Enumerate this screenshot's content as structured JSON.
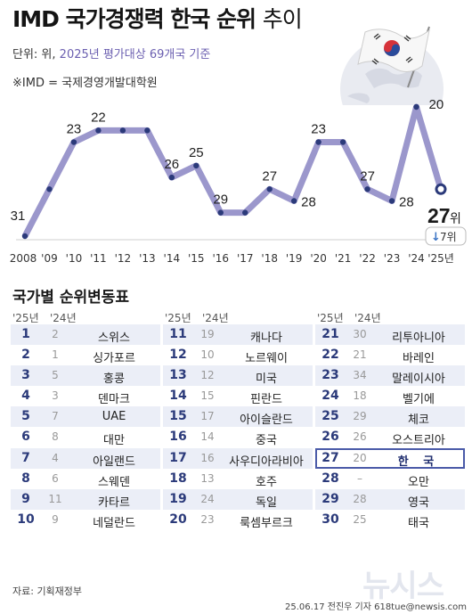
{
  "title": {
    "bold": "IMD 국가경쟁력 한국 순위",
    "light": "추이"
  },
  "unit": {
    "prefix": "단위: 위, ",
    "accent": "2025년 평가대상 69개국 기준"
  },
  "note": "※IMD = 국제경영개발대학원",
  "colors": {
    "line": "#9b97cc",
    "dot": "#2b3a7a",
    "highlight": "#4a5aa8",
    "row_band": "#ebeef7"
  },
  "chart_data": {
    "type": "line",
    "x": [
      "2008",
      "'09",
      "'10",
      "'11",
      "'12",
      "'13",
      "'14",
      "'15",
      "'16",
      "'17",
      "'18",
      "'19",
      "'20",
      "'21",
      "'22",
      "'23",
      "'24",
      "'25년"
    ],
    "y": [
      31,
      27,
      23,
      22,
      22,
      22,
      26,
      25,
      29,
      29,
      27,
      28,
      23,
      23,
      27,
      28,
      20,
      27
    ],
    "labels": [
      "31",
      "",
      "23",
      "22",
      "",
      "",
      "26",
      "25",
      "29",
      "",
      "27",
      "28",
      "23",
      "",
      "27",
      "28",
      "20",
      "27"
    ],
    "y_inverted": true,
    "grid": false,
    "final_label": {
      "value": "27",
      "unit": "위",
      "change": "7위",
      "change_direction": "down"
    }
  },
  "table": {
    "title": "국가별 순위변동표",
    "head_2025": "'25년",
    "head_2024": "'24년",
    "highlight_country": "한 국",
    "columns": [
      [
        {
          "rank": "1",
          "prev": "2",
          "name": "스위스"
        },
        {
          "rank": "2",
          "prev": "1",
          "name": "싱가포르"
        },
        {
          "rank": "3",
          "prev": "5",
          "name": "홍콩"
        },
        {
          "rank": "4",
          "prev": "3",
          "name": "덴마크"
        },
        {
          "rank": "5",
          "prev": "7",
          "name": "UAE"
        },
        {
          "rank": "6",
          "prev": "8",
          "name": "대만"
        },
        {
          "rank": "7",
          "prev": "4",
          "name": "아일랜드"
        },
        {
          "rank": "8",
          "prev": "6",
          "name": "스웨덴"
        },
        {
          "rank": "9",
          "prev": "11",
          "name": "카타르"
        },
        {
          "rank": "10",
          "prev": "9",
          "name": "네덜란드"
        }
      ],
      [
        {
          "rank": "11",
          "prev": "19",
          "name": "캐나다"
        },
        {
          "rank": "12",
          "prev": "10",
          "name": "노르웨이"
        },
        {
          "rank": "13",
          "prev": "12",
          "name": "미국"
        },
        {
          "rank": "14",
          "prev": "15",
          "name": "핀란드"
        },
        {
          "rank": "15",
          "prev": "17",
          "name": "아이슬란드"
        },
        {
          "rank": "16",
          "prev": "14",
          "name": "중국"
        },
        {
          "rank": "17",
          "prev": "16",
          "name": "사우디아라비아"
        },
        {
          "rank": "18",
          "prev": "13",
          "name": "호주"
        },
        {
          "rank": "19",
          "prev": "24",
          "name": "독일"
        },
        {
          "rank": "20",
          "prev": "23",
          "name": "룩셈부르크"
        }
      ],
      [
        {
          "rank": "21",
          "prev": "30",
          "name": "리투아니아"
        },
        {
          "rank": "22",
          "prev": "21",
          "name": "바레인"
        },
        {
          "rank": "23",
          "prev": "34",
          "name": "말레이시아"
        },
        {
          "rank": "24",
          "prev": "18",
          "name": "벨기에"
        },
        {
          "rank": "25",
          "prev": "29",
          "name": "체코"
        },
        {
          "rank": "26",
          "prev": "26",
          "name": "오스트리아"
        },
        {
          "rank": "27",
          "prev": "20",
          "name": "한 국"
        },
        {
          "rank": "28",
          "prev": "–",
          "name": "오만"
        },
        {
          "rank": "29",
          "prev": "28",
          "name": "영국"
        },
        {
          "rank": "30",
          "prev": "25",
          "name": "태국"
        }
      ]
    ]
  },
  "footer": {
    "source": "자료: 기획재정부",
    "credit": "25.06.17 전진우 기자 618tue@newsis.com",
    "watermark": "뉴시스"
  }
}
